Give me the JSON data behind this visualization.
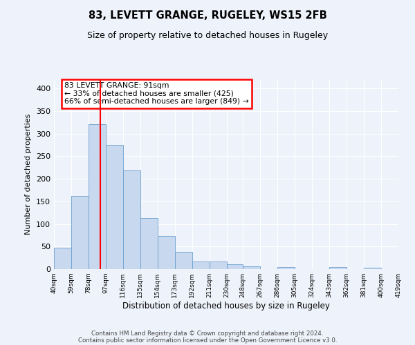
{
  "title": "83, LEVETT GRANGE, RUGELEY, WS15 2FB",
  "subtitle": "Size of property relative to detached houses in Rugeley",
  "xlabel": "Distribution of detached houses by size in Rugeley",
  "ylabel": "Number of detached properties",
  "bar_color": "#c8d8ef",
  "bar_edge_color": "#6a9fd0",
  "background_color": "#eef2fa",
  "grid_color": "#ffffff",
  "red_line_x": 91,
  "annotation_title": "83 LEVETT GRANGE: 91sqm",
  "annotation_line1": "← 33% of detached houses are smaller (425)",
  "annotation_line2": "66% of semi-detached houses are larger (849) →",
  "bin_edges": [
    40,
    59,
    78,
    97,
    116,
    135,
    154,
    173,
    192,
    211,
    230,
    248,
    267,
    286,
    305,
    324,
    343,
    362,
    381,
    400,
    419
  ],
  "bin_heights": [
    48,
    162,
    320,
    275,
    219,
    113,
    74,
    38,
    17,
    17,
    10,
    6,
    0,
    4,
    0,
    0,
    4,
    0,
    3,
    0
  ],
  "ylim": [
    0,
    420
  ],
  "yticks": [
    0,
    50,
    100,
    150,
    200,
    250,
    300,
    350,
    400
  ],
  "footer1": "Contains HM Land Registry data © Crown copyright and database right 2024.",
  "footer2": "Contains public sector information licensed under the Open Government Licence v3.0."
}
